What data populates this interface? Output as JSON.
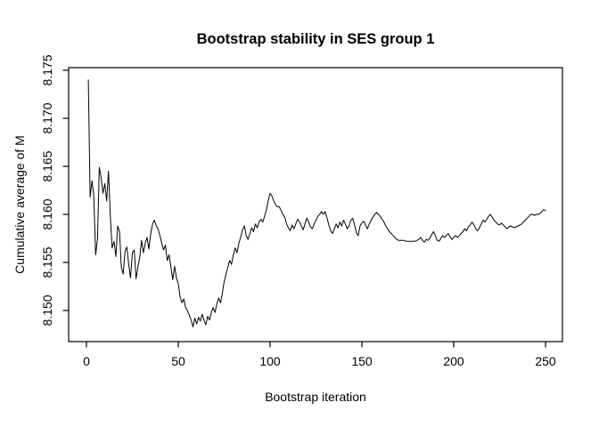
{
  "chart_data": {
    "type": "line",
    "title": "Bootstrap stability in SES group 1",
    "xlabel": "Bootstrap iteration",
    "ylabel": "Cumulative average of M",
    "legend_position": "none",
    "grid": false,
    "background_color": "#ffffff",
    "line_color": "#000000",
    "axis_color": "#000000",
    "x_ticks": [
      0,
      50,
      100,
      150,
      200,
      250
    ],
    "y_tick_labels": [
      "8.150",
      "8.155",
      "8.160",
      "8.165",
      "8.170",
      "8.175"
    ],
    "xlim": [
      0,
      250
    ],
    "ylim": [
      8.1473,
      8.1758
    ],
    "x_start": 1,
    "x_step": 1,
    "values": [
      8.174,
      8.1618,
      8.1635,
      8.162,
      8.1558,
      8.1575,
      8.1649,
      8.1638,
      8.1622,
      8.1632,
      8.1614,
      8.1645,
      8.1598,
      8.1565,
      8.1572,
      8.1556,
      8.1588,
      8.1582,
      8.1545,
      8.1538,
      8.1562,
      8.1566,
      8.1548,
      8.1534,
      8.156,
      8.1563,
      8.1533,
      8.1545,
      8.1555,
      8.1573,
      8.156,
      8.157,
      8.1576,
      8.1564,
      8.158,
      8.159,
      8.1594,
      8.1588,
      8.1585,
      8.1578,
      8.157,
      8.1563,
      8.1568,
      8.1552,
      8.1558,
      8.1545,
      8.1532,
      8.1546,
      8.1534,
      8.1528,
      8.1514,
      8.1508,
      8.1512,
      8.1503,
      8.15,
      8.1495,
      8.149,
      8.1483,
      8.1492,
      8.1486,
      8.1493,
      8.1489,
      8.1496,
      8.149,
      8.1485,
      8.1494,
      8.149,
      8.1498,
      8.1503,
      8.1498,
      8.1507,
      8.1513,
      8.1508,
      8.1518,
      8.153,
      8.1538,
      8.1545,
      8.1552,
      8.1548,
      8.1558,
      8.1565,
      8.156,
      8.157,
      8.1576,
      8.1584,
      8.1588,
      8.1578,
      8.1574,
      8.158,
      8.1586,
      8.1582,
      8.159,
      8.1586,
      8.1592,
      8.1595,
      8.1592,
      8.1598,
      8.1605,
      8.1614,
      8.1622,
      8.1619,
      8.1614,
      8.161,
      8.1608,
      8.1608,
      8.1604,
      8.16,
      8.1597,
      8.159,
      8.1586,
      8.1583,
      8.1589,
      8.1585,
      8.159,
      8.1595,
      8.1592,
      8.1588,
      8.1584,
      8.159,
      8.1596,
      8.1592,
      8.1587,
      8.1585,
      8.159,
      8.1594,
      8.1598,
      8.16,
      8.1603,
      8.16,
      8.1603,
      8.1596,
      8.1589,
      8.1583,
      8.158,
      8.1585,
      8.159,
      8.1586,
      8.1592,
      8.1588,
      8.1594,
      8.159,
      8.1585,
      8.1588,
      8.1594,
      8.1596,
      8.1589,
      8.1581,
      8.1578,
      8.1588,
      8.1591,
      8.1593,
      8.1589,
      8.1585,
      8.159,
      8.1594,
      8.1597,
      8.16,
      8.1602,
      8.16,
      8.1598,
      8.1595,
      8.1592,
      8.1588,
      8.1585,
      8.1582,
      8.158,
      8.1578,
      8.1576,
      8.1574,
      8.1573,
      8.1573,
      8.1573,
      8.1573,
      8.1572,
      8.1572,
      8.1572,
      8.1572,
      8.1572,
      8.1572,
      8.1573,
      8.1574,
      8.1576,
      8.1573,
      8.1571,
      8.1574,
      8.1573,
      8.1575,
      8.1579,
      8.1582,
      8.1578,
      8.1573,
      8.1572,
      8.1575,
      8.1578,
      8.1576,
      8.1578,
      8.158,
      8.1577,
      8.1574,
      8.1576,
      8.1578,
      8.1576,
      8.1578,
      8.158,
      8.1582,
      8.1585,
      8.1583,
      8.1587,
      8.1589,
      8.1592,
      8.1589,
      8.1585,
      8.1583,
      8.1586,
      8.159,
      8.1594,
      8.1592,
      8.1595,
      8.1598,
      8.16,
      8.1597,
      8.1594,
      8.1592,
      8.159,
      8.1589,
      8.1591,
      8.1589,
      8.1587,
      8.1585,
      8.1587,
      8.1588,
      8.1587,
      8.1586,
      8.1587,
      8.1588,
      8.1589,
      8.159,
      8.1592,
      8.1594,
      8.1596,
      8.1598,
      8.16,
      8.16,
      8.1599,
      8.16,
      8.16,
      8.1601,
      8.1603,
      8.1605,
      8.1604
    ]
  }
}
